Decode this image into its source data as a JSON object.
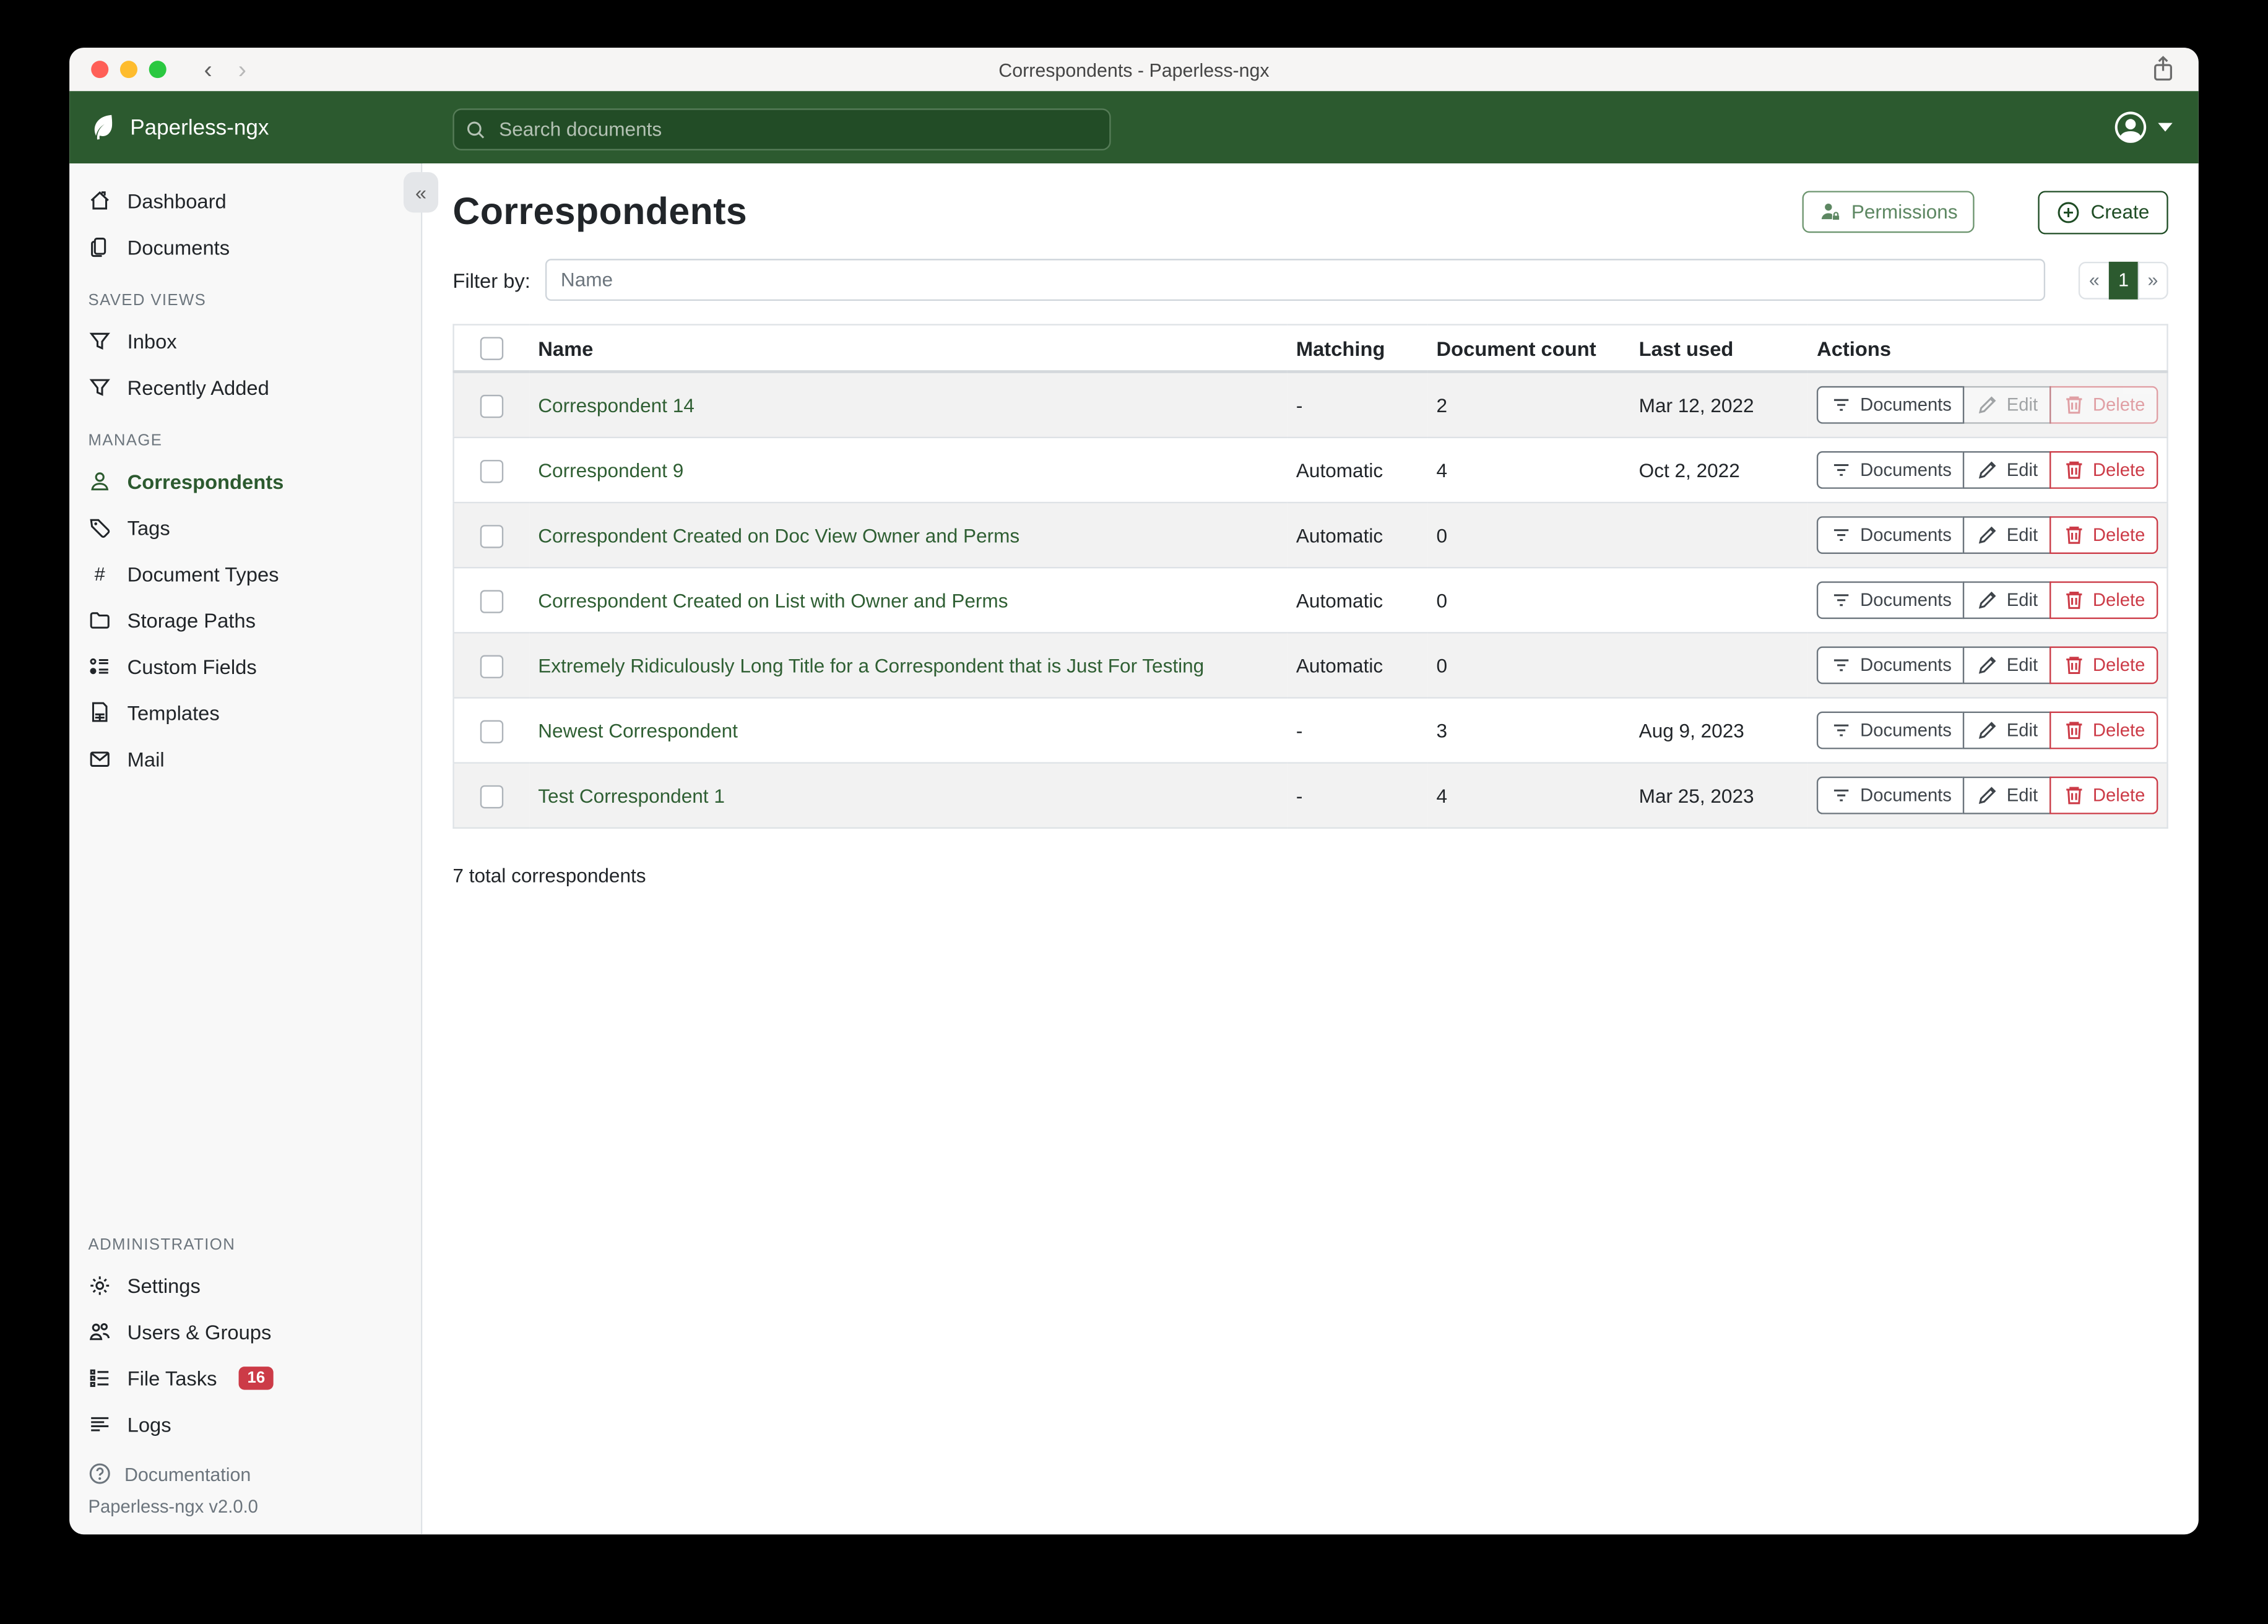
{
  "colors": {
    "brand": "#2c5a2f",
    "brand_dark": "#1e4c24",
    "brand_darker": "#224c26",
    "brand_border": "#567c58",
    "link": "#2f5f33",
    "danger": "#cc3b47"
  },
  "window": {
    "title": "Correspondents - Paperless-ngx",
    "back_icon": "back-chevron-icon",
    "forward_icon": "forward-chevron-icon",
    "share_icon": "share-icon"
  },
  "navbar": {
    "brand": "Paperless-ngx",
    "logo_icon": "paperless-logo-icon",
    "search_placeholder": "Search documents",
    "search_icon": "search-icon",
    "avatar_icon": "user-circle-icon"
  },
  "sidebar": {
    "primary": [
      {
        "label": "Dashboard",
        "icon": "home-icon"
      },
      {
        "label": "Documents",
        "icon": "documents-icon"
      }
    ],
    "sections": [
      {
        "label": "SAVED VIEWS",
        "items": [
          {
            "label": "Inbox",
            "icon": "funnel-icon"
          },
          {
            "label": "Recently Added",
            "icon": "funnel-icon"
          }
        ]
      },
      {
        "label": "MANAGE",
        "items": [
          {
            "label": "Correspondents",
            "icon": "person-icon",
            "active": true
          },
          {
            "label": "Tags",
            "icon": "tag-icon"
          },
          {
            "label": "Document Types",
            "icon": "hash-icon"
          },
          {
            "label": "Storage Paths",
            "icon": "folder-icon"
          },
          {
            "label": "Custom Fields",
            "icon": "custom-fields-icon"
          },
          {
            "label": "Templates",
            "icon": "template-icon"
          },
          {
            "label": "Mail",
            "icon": "mail-icon"
          }
        ]
      },
      {
        "label": "ADMINISTRATION",
        "push": true,
        "items": [
          {
            "label": "Settings",
            "icon": "gear-icon"
          },
          {
            "label": "Users & Groups",
            "icon": "users-icon"
          },
          {
            "label": "File Tasks",
            "icon": "tasks-icon",
            "badge": "16"
          },
          {
            "label": "Logs",
            "icon": "logs-icon"
          }
        ]
      }
    ],
    "doc_link": {
      "label": "Documentation",
      "icon": "question-circle-icon"
    },
    "version": "Paperless-ngx v2.0.0",
    "collapse_icon": "collapse-chevrons-icon"
  },
  "page": {
    "title": "Correspondents",
    "permissions_label": "Permissions",
    "permissions_icon": "person-lock-icon",
    "create_label": "Create",
    "create_icon": "plus-circle-icon",
    "filter_label": "Filter by:",
    "filter_placeholder": "Name",
    "pagination": {
      "prev": "«",
      "page": "1",
      "next": "»"
    }
  },
  "table": {
    "headers": [
      "Name",
      "Matching",
      "Document count",
      "Last used",
      "Actions"
    ],
    "action_labels": {
      "documents": "Documents",
      "edit": "Edit",
      "delete": "Delete"
    },
    "action_icons": {
      "documents": "filter-lines-icon",
      "edit": "pencil-icon",
      "delete": "trash-icon"
    },
    "rows": [
      {
        "name": "Correspondent 14",
        "matching": "-",
        "count": "2",
        "last_used": "Mar 12, 2022",
        "edit_delete_disabled": true
      },
      {
        "name": "Correspondent 9",
        "matching": "Automatic",
        "count": "4",
        "last_used": "Oct 2, 2022",
        "edit_delete_disabled": false
      },
      {
        "name": "Correspondent Created on Doc View Owner and Perms",
        "matching": "Automatic",
        "count": "0",
        "last_used": "",
        "edit_delete_disabled": false
      },
      {
        "name": "Correspondent Created on List with Owner and Perms",
        "matching": "Automatic",
        "count": "0",
        "last_used": "",
        "edit_delete_disabled": false
      },
      {
        "name": "Extremely Ridiculously Long Title for a Correspondent that is Just For Testing",
        "matching": "Automatic",
        "count": "0",
        "last_used": "",
        "edit_delete_disabled": false
      },
      {
        "name": "Newest Correspondent",
        "matching": "-",
        "count": "3",
        "last_used": "Aug 9, 2023",
        "edit_delete_disabled": false
      },
      {
        "name": "Test Correspondent 1",
        "matching": "-",
        "count": "4",
        "last_used": "Mar 25, 2023",
        "edit_delete_disabled": false
      }
    ],
    "summary": "7 total correspondents"
  }
}
